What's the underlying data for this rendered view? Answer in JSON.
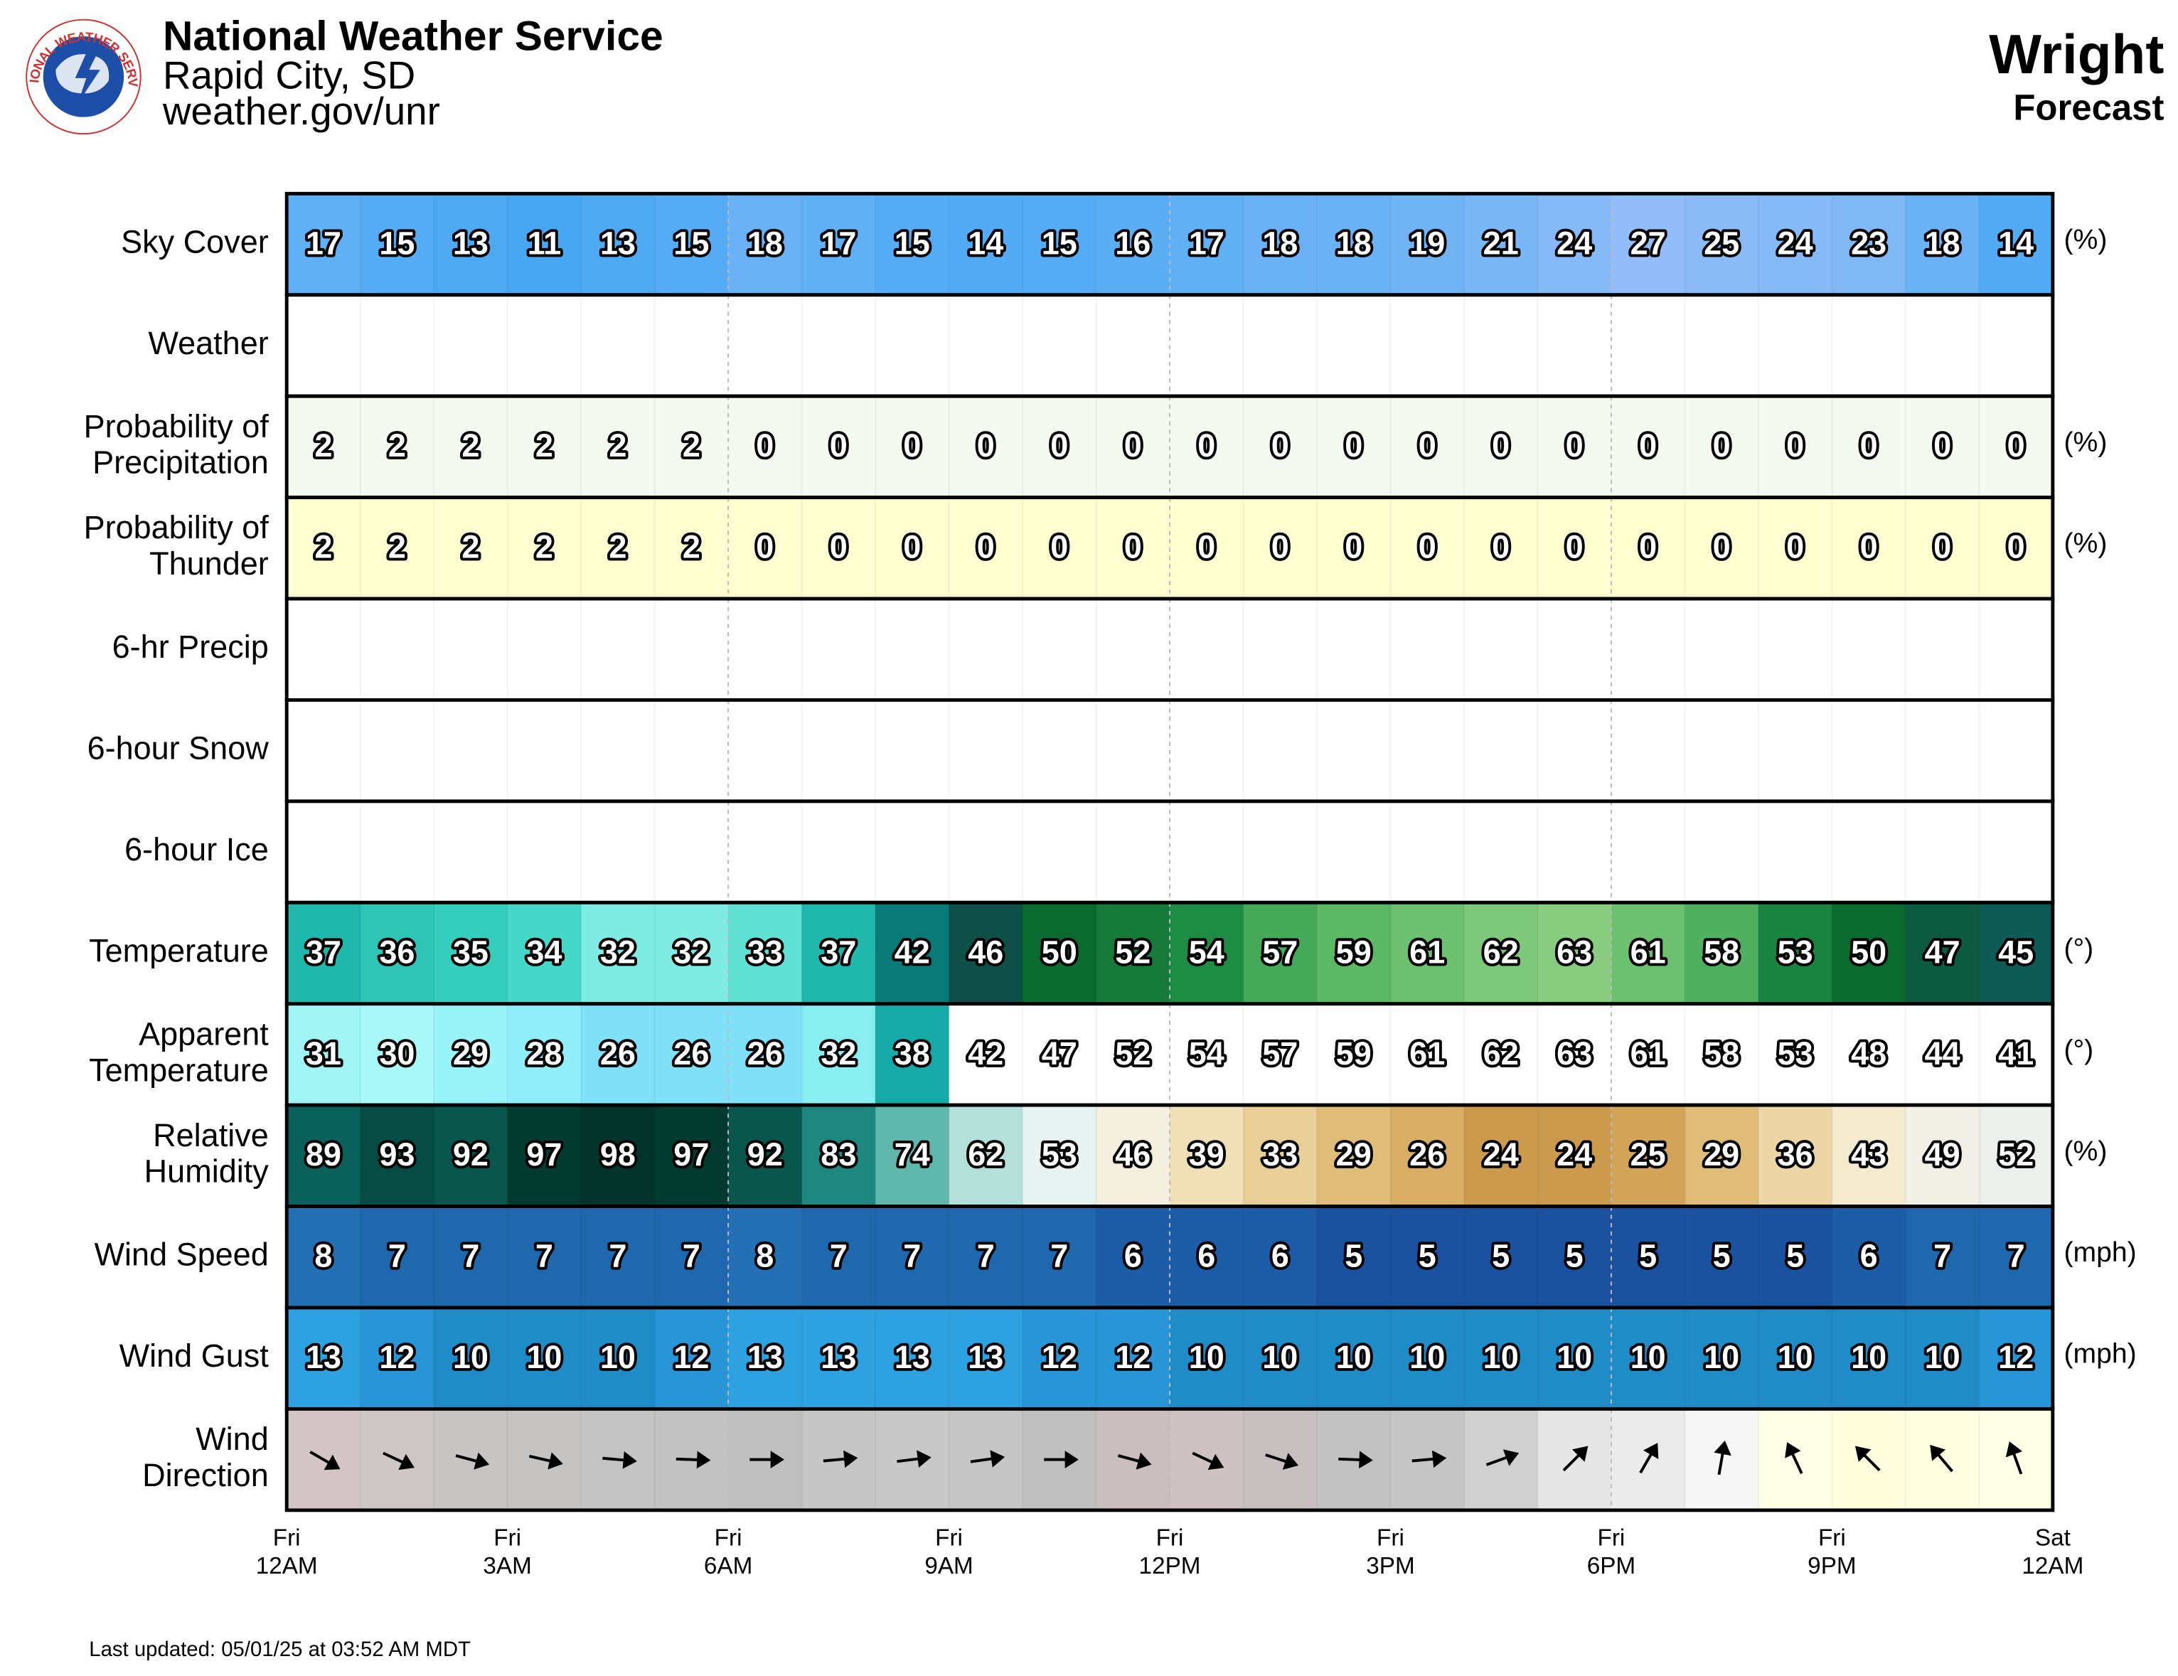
{
  "header": {
    "title": "National Weather Service",
    "office": "Rapid City, SD",
    "url": "weather.gov/unr",
    "location": "Wright",
    "subtitle": "Forecast",
    "logo_text": "NATIONAL WEATHER SERVICE"
  },
  "chart_data": {
    "type": "forecast-grid",
    "x_labels": [
      [
        "Fri",
        "12AM"
      ],
      [
        "Fri",
        "3AM"
      ],
      [
        "Fri",
        "6AM"
      ],
      [
        "Fri",
        "9AM"
      ],
      [
        "Fri",
        "12PM"
      ],
      [
        "Fri",
        "3PM"
      ],
      [
        "Fri",
        "6PM"
      ],
      [
        "Fri",
        "9PM"
      ],
      [
        "Sat",
        "12AM"
      ]
    ],
    "rows": [
      {
        "label": [
          "Sky Cover"
        ],
        "unit": "(%)",
        "values": [
          17,
          15,
          13,
          11,
          13,
          15,
          18,
          17,
          15,
          14,
          15,
          16,
          17,
          18,
          18,
          19,
          21,
          24,
          27,
          25,
          24,
          23,
          18,
          14
        ],
        "colors": [
          "#5fb0f4",
          "#55acf4",
          "#4ea9f3",
          "#47a7f2",
          "#4ea9f3",
          "#55acf4",
          "#6ab2f5",
          "#5fb0f4",
          "#55acf4",
          "#52abf4",
          "#55acf4",
          "#5aaef4",
          "#60b0f4",
          "#6ab2f5",
          "#6ab2f5",
          "#70b4f5",
          "#7ab7f6",
          "#86b9f7",
          "#93bdf8",
          "#8abbf7",
          "#86b9f7",
          "#80b8f6",
          "#6ab2f5",
          "#52abf4"
        ]
      },
      {
        "label": [
          "Weather"
        ]
      },
      {
        "label": [
          "Probability of",
          "Precipitation"
        ],
        "unit": "(%)",
        "values": [
          2,
          2,
          2,
          2,
          2,
          2,
          0,
          0,
          0,
          0,
          0,
          0,
          0,
          0,
          0,
          0,
          0,
          0,
          0,
          0,
          0,
          0,
          0,
          0
        ],
        "color": "#f4faf0"
      },
      {
        "label": [
          "Probability of",
          "Thunder"
        ],
        "unit": "(%)",
        "values": [
          2,
          2,
          2,
          2,
          2,
          2,
          0,
          0,
          0,
          0,
          0,
          0,
          0,
          0,
          0,
          0,
          0,
          0,
          0,
          0,
          0,
          0,
          0,
          0
        ],
        "color": "#fefed0"
      },
      {
        "label": [
          "6-hr Precip"
        ]
      },
      {
        "label": [
          "6-hour Snow"
        ]
      },
      {
        "label": [
          "6-hour Ice"
        ]
      },
      {
        "label": [
          "Temperature"
        ],
        "unit": "(°)",
        "values": [
          37,
          36,
          35,
          34,
          32,
          32,
          33,
          37,
          42,
          46,
          50,
          52,
          54,
          57,
          59,
          61,
          62,
          63,
          61,
          58,
          53,
          50,
          47,
          45
        ],
        "colors": [
          "#20b8ac",
          "#2ec4b6",
          "#35cdbd",
          "#45d8c8",
          "#7fece4",
          "#7fece4",
          "#5ee0d3",
          "#20b8ac",
          "#0a7a78",
          "#0e4f48",
          "#0a6a30",
          "#157a3a",
          "#1e8c44",
          "#45a95a",
          "#5bb865",
          "#6cc070",
          "#7ec87b",
          "#88cc80",
          "#6cc070",
          "#4fb060",
          "#1a8540",
          "#0a6a30",
          "#0c5a40",
          "#105a55"
        ]
      },
      {
        "label": [
          "Apparent",
          "Temperature"
        ],
        "unit": "(°)",
        "values": [
          31,
          30,
          29,
          28,
          26,
          26,
          26,
          32,
          38,
          42,
          47,
          52,
          54,
          57,
          59,
          61,
          62,
          63,
          61,
          58,
          53,
          48,
          44,
          41
        ],
        "colors": [
          "#a0f4f4",
          "#a8f8f8",
          "#98f4f8",
          "#90eef8",
          "#7fe0f8",
          "#7fe0f8",
          "#7fe0f8",
          "#88eef0",
          "#18aaa8",
          "#ffffff",
          "#ffffff",
          "#ffffff",
          "#ffffff",
          "#ffffff",
          "#ffffff",
          "#ffffff",
          "#ffffff",
          "#ffffff",
          "#ffffff",
          "#ffffff",
          "#ffffff",
          "#ffffff",
          "#ffffff",
          "#ffffff"
        ]
      },
      {
        "label": [
          "Relative",
          "Humidity"
        ],
        "unit": "(%)",
        "values": [
          89,
          93,
          92,
          97,
          98,
          97,
          92,
          83,
          74,
          62,
          53,
          46,
          39,
          33,
          29,
          26,
          24,
          24,
          25,
          29,
          36,
          43,
          49,
          52
        ],
        "colors": [
          "#0a605a",
          "#064c44",
          "#08564c",
          "#033a30",
          "#02342c",
          "#033a30",
          "#08564c",
          "#1e8880",
          "#60b8ac",
          "#b4e0da",
          "#e8f2f0",
          "#f4efde",
          "#f0e0b8",
          "#e8cf98",
          "#dfbc78",
          "#d8ae64",
          "#cc9a4c",
          "#cc9a4c",
          "#d2a458",
          "#dfbc78",
          "#ecd6a6",
          "#f4ead0",
          "#f2f0e6",
          "#ecf0ec"
        ]
      },
      {
        "label": [
          "Wind Speed"
        ],
        "unit": "(mph)",
        "values": [
          8,
          7,
          7,
          7,
          7,
          7,
          8,
          7,
          7,
          7,
          7,
          6,
          6,
          6,
          5,
          5,
          5,
          5,
          5,
          5,
          5,
          6,
          7,
          7
        ],
        "colors": [
          "#2470b4",
          "#1f68ae",
          "#1f68ae",
          "#1f68ae",
          "#1f68ae",
          "#1f68ae",
          "#2470b4",
          "#1f68ae",
          "#1f68ae",
          "#1f68ae",
          "#1f68ae",
          "#1d5ca6",
          "#1d5ca6",
          "#1d5ca6",
          "#1b52a0",
          "#1b52a0",
          "#1b52a0",
          "#1b52a0",
          "#1b52a0",
          "#1b52a0",
          "#1b52a0",
          "#1d5ca6",
          "#1f68ae",
          "#1f68ae"
        ]
      },
      {
        "label": [
          "Wind Gust"
        ],
        "unit": "(mph)",
        "values": [
          13,
          12,
          10,
          10,
          10,
          12,
          13,
          13,
          13,
          13,
          12,
          12,
          10,
          10,
          10,
          10,
          10,
          10,
          10,
          10,
          10,
          10,
          10,
          12
        ],
        "colors": [
          "#2ea2e0",
          "#2896d6",
          "#1f8cc8",
          "#1f8cc8",
          "#1f8cc8",
          "#2896d6",
          "#2ea2e0",
          "#2ea2e0",
          "#2ea2e0",
          "#2ea2e0",
          "#2896d6",
          "#2896d6",
          "#1f8cc8",
          "#1f8cc8",
          "#1f8cc8",
          "#1f8cc8",
          "#1f8cc8",
          "#1f8cc8",
          "#1f8cc8",
          "#1f8cc8",
          "#1f8cc8",
          "#1f8cc8",
          "#1f8cc8",
          "#2896d6"
        ]
      },
      {
        "label": [
          "Wind",
          "Direction"
        ],
        "directions": [
          300,
          295,
          285,
          283,
          275,
          272,
          270,
          265,
          263,
          262,
          270,
          285,
          295,
          288,
          272,
          265,
          250,
          225,
          210,
          190,
          155,
          135,
          140,
          160
        ],
        "colors": [
          "#d3c5c5",
          "#cfc6c6",
          "#c8c4c4",
          "#c6c3c3",
          "#c4c4c4",
          "#c2c2c2",
          "#c0c0c0",
          "#c6c6c6",
          "#c8c8c8",
          "#c6c6c6",
          "#c0c0c0",
          "#c9bdbd",
          "#cec2c2",
          "#c8c0c0",
          "#c2c2c2",
          "#c6c6c6",
          "#d0d0d0",
          "#e6e6e6",
          "#ebebeb",
          "#f6f6f6",
          "#ffffe8",
          "#fefedc",
          "#fefee0",
          "#ffffe8"
        ]
      }
    ]
  },
  "footer": "Last updated: 05/01/25 at 03:52 AM MDT"
}
